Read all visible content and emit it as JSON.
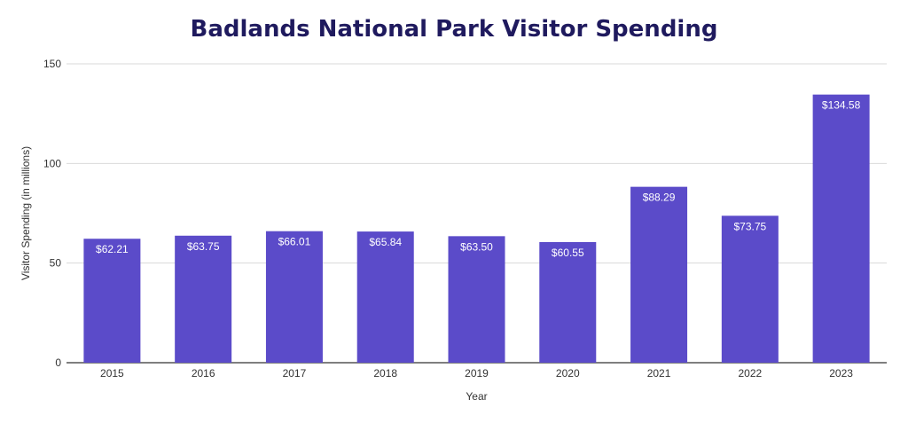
{
  "chart_data": {
    "type": "bar",
    "title": "Badlands National Park Visitor Spending",
    "xlabel": "Year",
    "ylabel": "Visitor Spending (in millions)",
    "categories": [
      "2015",
      "2016",
      "2017",
      "2018",
      "2019",
      "2020",
      "2021",
      "2022",
      "2023"
    ],
    "values": [
      62.21,
      63.75,
      66.01,
      65.84,
      63.5,
      60.55,
      88.29,
      73.75,
      134.58
    ],
    "data_labels": [
      "$62.21",
      "$63.75",
      "$66.01",
      "$65.84",
      "$63.50",
      "$60.55",
      "$88.29",
      "$73.75",
      "$134.58"
    ],
    "ylim": [
      0,
      150
    ],
    "yticks": [
      "0",
      "50",
      "100",
      "150"
    ],
    "grid": true,
    "legend": "none",
    "bar_color": "#5b4bc9",
    "title_color": "#1f1a5e"
  }
}
